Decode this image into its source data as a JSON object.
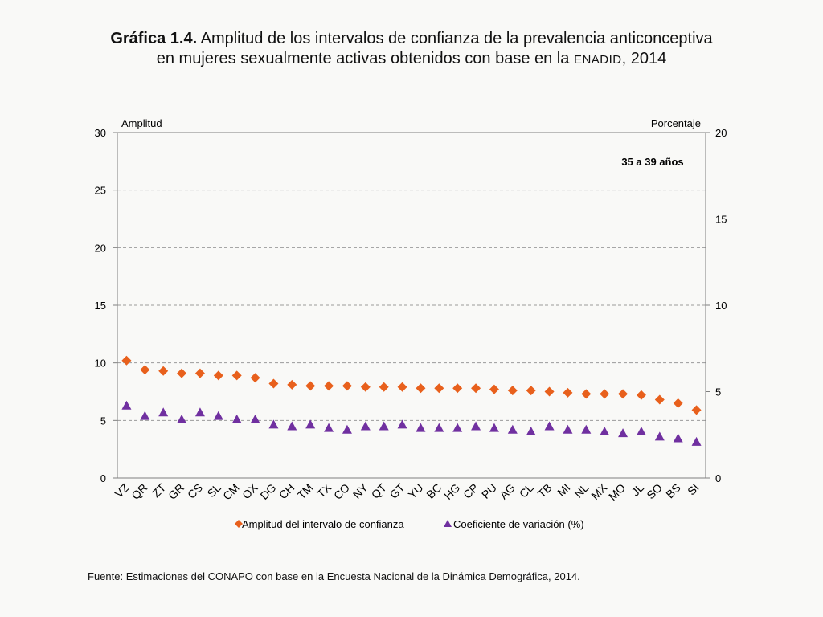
{
  "title": {
    "bold": "Gráfica 1.4.",
    "line1_rest": "Amplitud de los intervalos de confianza de la prevalencia anticonceptiva",
    "line2_start": "en mujeres sexualmente activas obtenidos con base en la",
    "line2_smallcaps": "ENADID",
    "line2_end": ", 2014"
  },
  "source": "Fuente: Estimaciones del CONAPO con base en la Encuesta Nacional de la Dinámica Demográfica, 2014.",
  "colors": {
    "diamond": "#e8601c",
    "triangle": "#7030a0",
    "grid": "#9a9a9a",
    "axis": "#7f7f7f"
  },
  "chart_data": {
    "type": "scatter",
    "annotation": "35 a 39 años",
    "categories": [
      "VZ",
      "QR",
      "ZT",
      "GR",
      "CS",
      "SL",
      "CM",
      "OX",
      "DG",
      "CH",
      "TM",
      "TX",
      "CO",
      "NY",
      "QT",
      "GT",
      "YU",
      "BC",
      "HG",
      "CP",
      "PU",
      "AG",
      "CL",
      "TB",
      "MI",
      "NL",
      "MX",
      "MO",
      "JL",
      "SO",
      "BS",
      "SI"
    ],
    "y_left": {
      "label": "Amplitud",
      "range": [
        0,
        30
      ],
      "ticks": [
        0,
        5,
        10,
        15,
        20,
        25,
        30
      ]
    },
    "y_right": {
      "label": "Porcentaje",
      "range": [
        0,
        20
      ],
      "ticks": [
        0,
        5,
        10,
        15,
        20
      ]
    },
    "grid": true,
    "legend_position": "bottom",
    "series": [
      {
        "name": "Amplitud del intervalo de confianza",
        "marker": "diamond",
        "axis": "left",
        "values": [
          10.2,
          9.4,
          9.3,
          9.1,
          9.1,
          8.9,
          8.9,
          8.7,
          8.2,
          8.1,
          8.0,
          8.0,
          8.0,
          7.9,
          7.9,
          7.9,
          7.8,
          7.8,
          7.8,
          7.8,
          7.7,
          7.6,
          7.6,
          7.5,
          7.4,
          7.3,
          7.3,
          7.3,
          7.2,
          6.8,
          6.5,
          5.9
        ]
      },
      {
        "name": "Coeficiente de variación (%)",
        "marker": "triangle",
        "axis": "right",
        "values": [
          4.2,
          3.6,
          3.8,
          3.4,
          3.8,
          3.6,
          3.4,
          3.4,
          3.1,
          3.0,
          3.1,
          2.9,
          2.8,
          3.0,
          3.0,
          3.1,
          2.9,
          2.9,
          2.9,
          3.0,
          2.9,
          2.8,
          2.7,
          3.0,
          2.8,
          2.8,
          2.7,
          2.6,
          2.7,
          2.4,
          2.3,
          2.1
        ]
      }
    ]
  }
}
